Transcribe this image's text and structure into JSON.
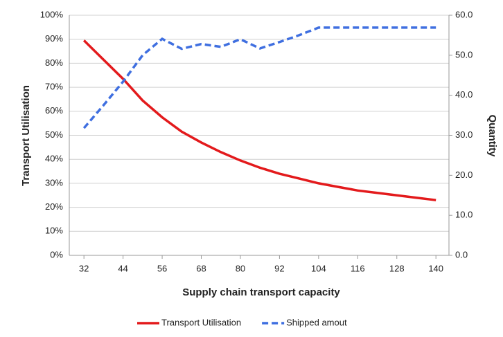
{
  "chart_data": {
    "type": "line",
    "x_label": "Supply chain transport capacity",
    "y_label": "Transport Utilisation",
    "y2_label": "Quantity",
    "x": [
      32,
      38,
      44,
      50,
      56,
      62,
      68,
      74,
      80,
      86,
      92,
      98,
      104,
      110,
      116,
      122,
      128,
      134,
      140
    ],
    "series": [
      {
        "name": "Transport Utilisation",
        "color": "#e31a1c",
        "style": "solid",
        "values": [
          89.5,
          81.5,
          73.5,
          64.5,
          57.5,
          51.5,
          47,
          43,
          39.5,
          36.5,
          34,
          32,
          30,
          28.5,
          27,
          26,
          25,
          24,
          23
        ]
      },
      {
        "name": "Shipped amout",
        "color": "#3f6fe0",
        "style": "dashed",
        "axis": "y2",
        "values": [
          31.8,
          37.5,
          43.4,
          50,
          54.1,
          51.6,
          52.8,
          52.1,
          54,
          51.7,
          53.3,
          55,
          56.9,
          56.9,
          56.9,
          56.9,
          56.9,
          56.9,
          56.9
        ]
      }
    ],
    "xlim": [
      27.5,
      144
    ],
    "xticks": [
      32,
      44,
      56,
      68,
      80,
      92,
      104,
      116,
      128,
      140
    ],
    "ylim": [
      0,
      100
    ],
    "yticks": [
      {
        "value": 0,
        "label": "0%"
      },
      {
        "value": 10,
        "label": "10%"
      },
      {
        "value": 20,
        "label": "20%"
      },
      {
        "value": 30,
        "label": "30%"
      },
      {
        "value": 40,
        "label": "40%"
      },
      {
        "value": 50,
        "label": "50%"
      },
      {
        "value": 60,
        "label": "60%"
      },
      {
        "value": 70,
        "label": "70%"
      },
      {
        "value": 80,
        "label": "80%"
      },
      {
        "value": 90,
        "label": "90%"
      },
      {
        "value": 100,
        "label": "100%"
      }
    ],
    "y2lim": [
      0,
      60
    ],
    "y2ticks": [
      {
        "value": 0,
        "label": "0.0"
      },
      {
        "value": 10,
        "label": "10.0"
      },
      {
        "value": 20,
        "label": "20.0"
      },
      {
        "value": 30,
        "label": "30.0"
      },
      {
        "value": 40,
        "label": "40.0"
      },
      {
        "value": 50,
        "label": "50.0"
      },
      {
        "value": 60,
        "label": "60.0"
      }
    ],
    "grid": true,
    "legend": "bottom"
  }
}
